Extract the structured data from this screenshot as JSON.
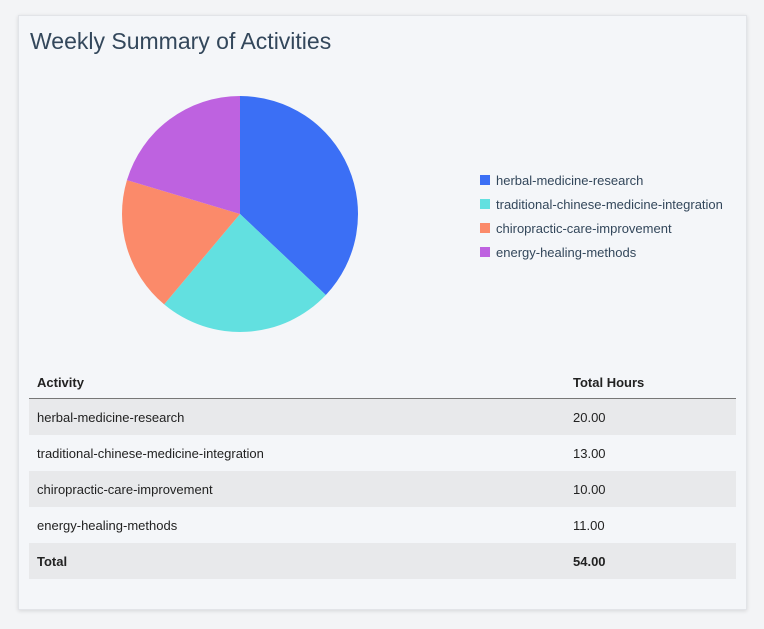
{
  "title": "Weekly Summary of Activities",
  "chart_data": {
    "type": "pie",
    "categories": [
      "herbal-medicine-research",
      "traditional-chinese-medicine-integration",
      "chiropractic-care-improvement",
      "energy-healing-methods"
    ],
    "values": [
      20,
      13,
      10,
      11
    ],
    "colors": [
      "#3b6ff5",
      "#62e0e0",
      "#fb8a6a",
      "#be62e0"
    ],
    "legend_position": "right",
    "start": "top",
    "direction": "clockwise"
  },
  "table": {
    "headers": [
      "Activity",
      "Total Hours"
    ],
    "rows": [
      [
        "herbal-medicine-research",
        "20.00"
      ],
      [
        "traditional-chinese-medicine-integration",
        "13.00"
      ],
      [
        "chiropractic-care-improvement",
        "10.00"
      ],
      [
        "energy-healing-methods",
        "11.00"
      ]
    ],
    "total": [
      "Total",
      "54.00"
    ]
  }
}
